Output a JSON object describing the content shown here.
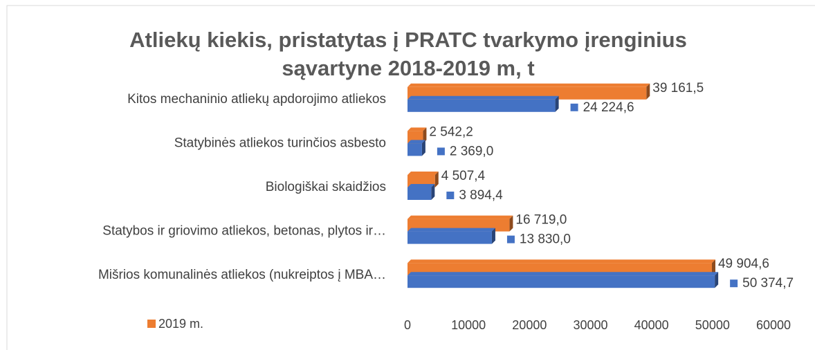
{
  "chart_data": {
    "type": "bar",
    "orientation": "horizontal",
    "title": [
      "Atliekų kiekis, pristatytas į PRATC tvarkymo įrenginius",
      "sąvartyne 2018-2019 m, t"
    ],
    "categories": [
      "Kitos mechaninio atliekų apdorojimo atliekos",
      "Statybinės atliekos turinčios asbesto",
      "Biologiškai skaidžios",
      "Statybos ir griovimo atliekos, betonas, plytos ir…",
      "Mišrios komunalinės atliekos (nukreiptos į MBA…"
    ],
    "series": [
      {
        "name": "2019 m.",
        "color": "#ED7D31",
        "values": [
          39161.5,
          2542.2,
          4507.4,
          16719.0,
          49904.6
        ],
        "value_labels": [
          "39 161,5",
          "2 542,2",
          "4 507,4",
          "16 719,0",
          "49 904,6"
        ]
      },
      {
        "color": "#4472C4",
        "values": [
          24224.6,
          2369.0,
          3894.4,
          13830.0,
          50374.7
        ],
        "value_labels": [
          "24 224,6",
          "2 369,0",
          "3 894,4",
          "13 830,0",
          "50 374,7"
        ]
      }
    ],
    "xlim": [
      0,
      60000
    ],
    "xticks": [
      0,
      10000,
      20000,
      30000,
      40000,
      50000,
      60000
    ],
    "legend": "bottom-left",
    "grid": false
  }
}
